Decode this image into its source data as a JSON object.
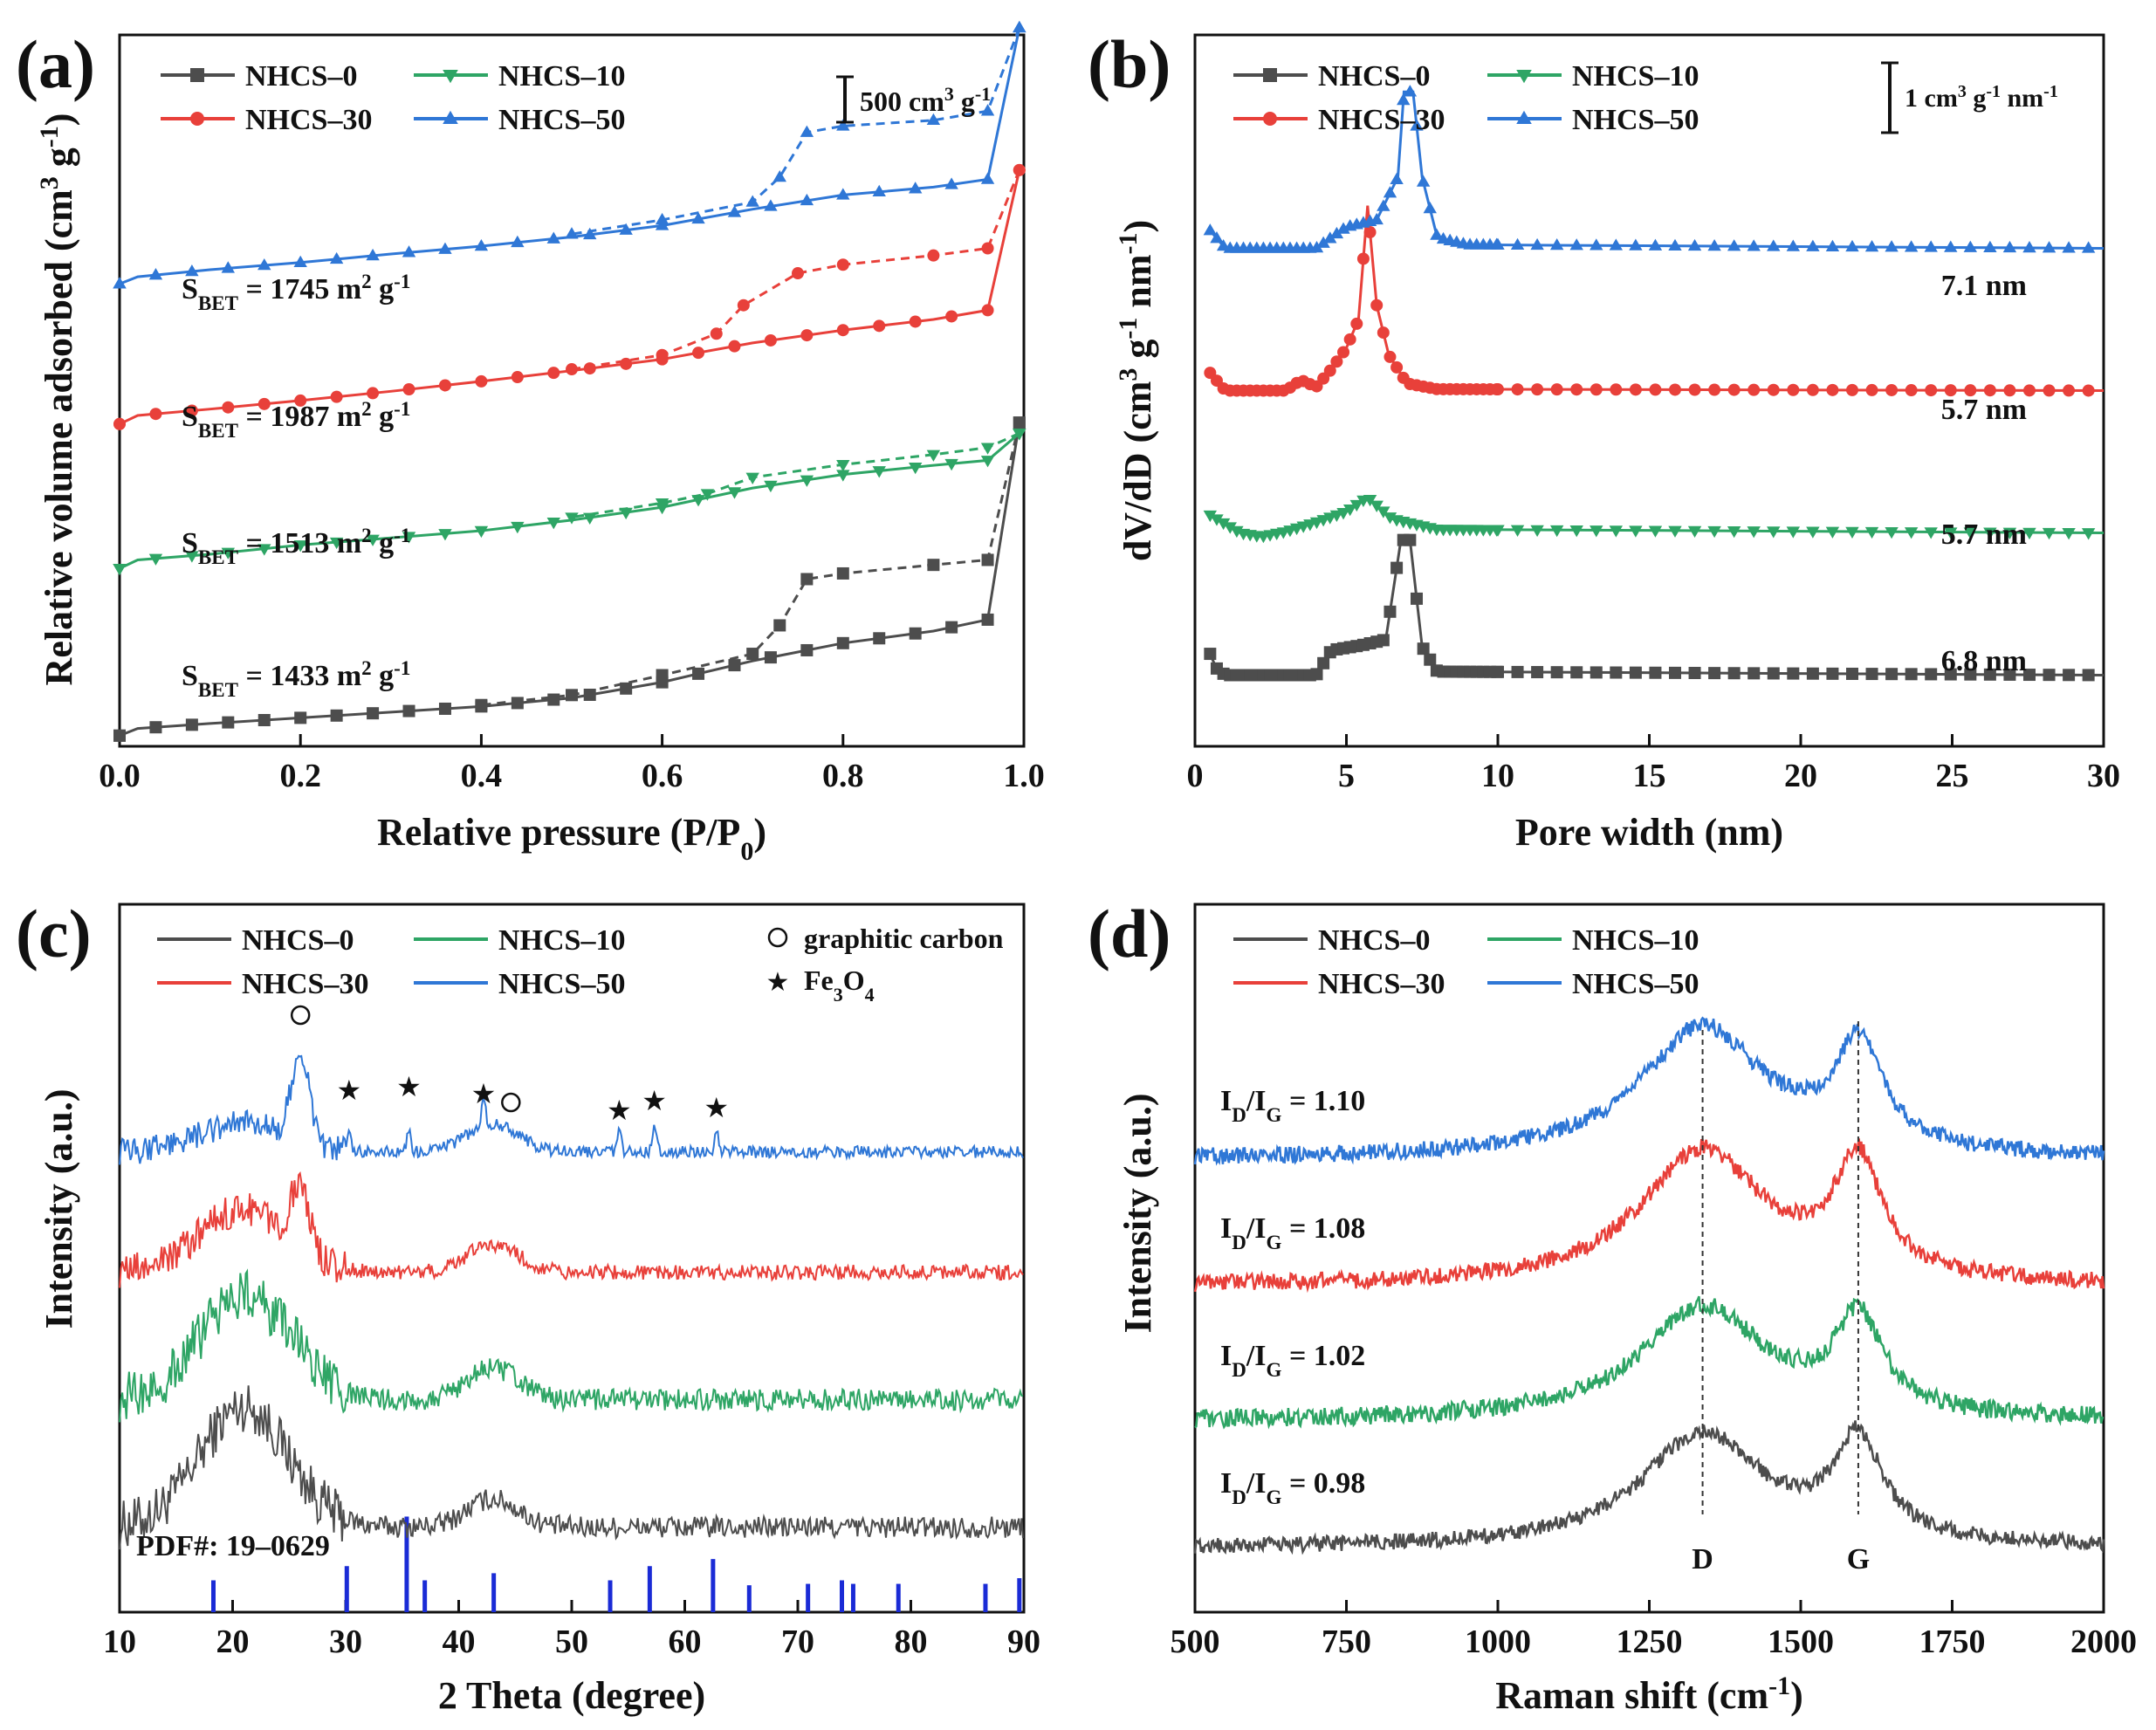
{
  "chart_data": [
    {
      "panel": "a",
      "type": "line",
      "panel_label": "(a)",
      "xlabel": "Relative pressure (P/P",
      "xlabel_sub": "0",
      "xlabel_close": ")",
      "ylabel": "Relative volume adsorbed (cm",
      "ylabel_sup": "3",
      "ylabel_mid": " g",
      "ylabel_sup2": "-1",
      "ylabel_close": ")",
      "xlim": [
        0,
        1.0
      ],
      "ylim": [
        0,
        100
      ],
      "xticks": [
        "0.0",
        "0.2",
        "0.4",
        "0.6",
        "0.8",
        "1.0"
      ],
      "xtick_values": [
        0,
        0.2,
        0.4,
        0.6,
        0.8,
        1.0
      ],
      "scale_bar": {
        "text": "500 cm",
        "sup": "3",
        "mid": " g",
        "sup2": "-1"
      },
      "legend": [
        "NHCS–0",
        "NHCS–10",
        "NHCS–30",
        "NHCS–50"
      ],
      "annotations": [
        {
          "pre": "S",
          "sub": "BET",
          "post": " = 1745 m",
          "sup": "2",
          "post2": " g",
          "sup2": "-1"
        },
        {
          "pre": "S",
          "sub": "BET",
          "post": " = 1987 m",
          "sup": "2",
          "post2": " g",
          "sup2": "-1"
        },
        {
          "pre": "S",
          "sub": "BET",
          "post": " = 1513 m",
          "sup": "2",
          "post2": " g",
          "sup2": "-1"
        },
        {
          "pre": "S",
          "sub": "BET",
          "post": " = 1433 m",
          "sup": "2",
          "post2": " g",
          "sup2": "-1"
        }
      ],
      "series": [
        {
          "name": "NHCS–0",
          "color": "#4d4d4d",
          "marker": "square",
          "adsorption": [
            [
              0.0,
              1.5
            ],
            [
              0.02,
              2.5
            ],
            [
              0.1,
              3.2
            ],
            [
              0.2,
              4.0
            ],
            [
              0.3,
              4.8
            ],
            [
              0.4,
              5.6
            ],
            [
              0.5,
              6.8
            ],
            [
              0.6,
              9.0
            ],
            [
              0.7,
              12.0
            ],
            [
              0.8,
              14.5
            ],
            [
              0.9,
              16.2
            ],
            [
              0.96,
              17.8
            ],
            [
              0.995,
              45.5
            ]
          ],
          "desorption": [
            [
              0.995,
              45.5
            ],
            [
              0.96,
              26.2
            ],
            [
              0.9,
              25.5
            ],
            [
              0.8,
              24.3
            ],
            [
              0.76,
              23.5
            ],
            [
              0.73,
              17.0
            ],
            [
              0.7,
              13.0
            ],
            [
              0.6,
              10.0
            ],
            [
              0.5,
              7.2
            ],
            [
              0.4,
              5.8
            ]
          ]
        },
        {
          "name": "NHCS–10",
          "color": "#2ea565",
          "marker": "triangle-down",
          "adsorption": [
            [
              0.0,
              25.0
            ],
            [
              0.02,
              26.2
            ],
            [
              0.1,
              27.0
            ],
            [
              0.2,
              28.3
            ],
            [
              0.3,
              29.3
            ],
            [
              0.4,
              30.3
            ],
            [
              0.5,
              31.8
            ],
            [
              0.6,
              33.6
            ],
            [
              0.7,
              36.3
            ],
            [
              0.8,
              38.2
            ],
            [
              0.9,
              39.5
            ],
            [
              0.96,
              40.2
            ],
            [
              0.995,
              44.0
            ]
          ],
          "desorption": [
            [
              0.995,
              44.0
            ],
            [
              0.96,
              42.0
            ],
            [
              0.9,
              41.0
            ],
            [
              0.8,
              39.6
            ],
            [
              0.7,
              37.8
            ],
            [
              0.65,
              35.5
            ],
            [
              0.6,
              34.2
            ],
            [
              0.5,
              32.2
            ]
          ]
        },
        {
          "name": "NHCS–30",
          "color": "#e8403a",
          "marker": "circle",
          "adsorption": [
            [
              0.0,
              45.3
            ],
            [
              0.02,
              46.5
            ],
            [
              0.1,
              47.4
            ],
            [
              0.2,
              48.6
            ],
            [
              0.3,
              49.9
            ],
            [
              0.4,
              51.3
            ],
            [
              0.5,
              52.8
            ],
            [
              0.6,
              54.4
            ],
            [
              0.7,
              56.7
            ],
            [
              0.8,
              58.5
            ],
            [
              0.9,
              60.0
            ],
            [
              0.96,
              61.3
            ],
            [
              0.995,
              81.0
            ]
          ],
          "desorption": [
            [
              0.995,
              81.0
            ],
            [
              0.96,
              70.0
            ],
            [
              0.9,
              69.0
            ],
            [
              0.8,
              67.7
            ],
            [
              0.75,
              66.5
            ],
            [
              0.69,
              62.0
            ],
            [
              0.66,
              58.0
            ],
            [
              0.6,
              55.0
            ],
            [
              0.5,
              53.0
            ]
          ]
        },
        {
          "name": "NHCS–50",
          "color": "#2f77d6",
          "marker": "triangle-up",
          "adsorption": [
            [
              0.0,
              65.0
            ],
            [
              0.02,
              66.0
            ],
            [
              0.1,
              67.0
            ],
            [
              0.2,
              68.0
            ],
            [
              0.3,
              69.2
            ],
            [
              0.4,
              70.3
            ],
            [
              0.5,
              71.6
            ],
            [
              0.6,
              73.2
            ],
            [
              0.7,
              75.5
            ],
            [
              0.8,
              77.5
            ],
            [
              0.9,
              78.6
            ],
            [
              0.96,
              79.7
            ],
            [
              0.995,
              101.0
            ]
          ],
          "desorption": [
            [
              0.995,
              101.0
            ],
            [
              0.96,
              89.3
            ],
            [
              0.9,
              88.0
            ],
            [
              0.8,
              87.2
            ],
            [
              0.76,
              86.3
            ],
            [
              0.73,
              80.0
            ],
            [
              0.7,
              76.5
            ],
            [
              0.6,
              74.0
            ],
            [
              0.5,
              72.0
            ]
          ]
        }
      ]
    },
    {
      "panel": "b",
      "type": "line",
      "panel_label": "(b)",
      "xlabel": "Pore width (nm)",
      "ylabel": "dV/dD (cm",
      "ylabel_sup": "3",
      "ylabel_mid": " g",
      "ylabel_sup2": "-1",
      "ylabel_post": " nm",
      "ylabel_sup3": "-1",
      "ylabel_close": ")",
      "xlim": [
        0,
        30
      ],
      "ylim": [
        0,
        100
      ],
      "xticks": [
        "0",
        "5",
        "10",
        "15",
        "20",
        "25",
        "30"
      ],
      "xtick_values": [
        0,
        5,
        10,
        15,
        20,
        25,
        30
      ],
      "scale_bar": {
        "text": "1 cm",
        "sup": "3",
        "mid": " g",
        "sup2": "-1",
        "post": " nm",
        "sup3": "-1"
      },
      "legend": [
        "NHCS–0",
        "NHCS–10",
        "NHCS–30",
        "NHCS–50"
      ],
      "peak_labels": [
        "7.1 nm",
        "5.7 nm",
        "5.7 nm",
        "6.8 nm"
      ],
      "series": [
        {
          "name": "NHCS–0",
          "color": "#4d4d4d",
          "marker": "square",
          "peak_nm": 6.8,
          "baseline": 10.0,
          "peak_height": 19.0,
          "points": [
            [
              0.5,
              13.0
            ],
            [
              0.7,
              11.0
            ],
            [
              1.0,
              10.0
            ],
            [
              4.0,
              10.0
            ],
            [
              4.5,
              13.5
            ],
            [
              5.5,
              14.2
            ],
            [
              6.3,
              15.0
            ],
            [
              6.8,
              29.0
            ],
            [
              7.1,
              29.0
            ],
            [
              7.5,
              14.0
            ],
            [
              8.0,
              10.5
            ],
            [
              30,
              10.0
            ]
          ]
        },
        {
          "name": "NHCS–10",
          "color": "#2ea565",
          "marker": "triangle-down",
          "peak_nm": 5.7,
          "baseline": 30.0,
          "peak_height": 5.0,
          "points": [
            [
              0.5,
              32.5
            ],
            [
              1.5,
              30.0
            ],
            [
              2.2,
              29.5
            ],
            [
              3.0,
              30.2
            ],
            [
              4.0,
              31.5
            ],
            [
              5.0,
              33.0
            ],
            [
              5.7,
              35.0
            ],
            [
              6.5,
              32.0
            ],
            [
              8.0,
              30.5
            ],
            [
              30,
              30.0
            ]
          ]
        },
        {
          "name": "NHCS–30",
          "color": "#e8403a",
          "marker": "circle",
          "peak_nm": 5.7,
          "baseline": 50.0,
          "peak_height": 26.0,
          "points": [
            [
              0.5,
              52.5
            ],
            [
              1.0,
              50.0
            ],
            [
              3.0,
              50.0
            ],
            [
              3.5,
              51.5
            ],
            [
              4.0,
              50.5
            ],
            [
              4.5,
              53.0
            ],
            [
              5.0,
              56.0
            ],
            [
              5.4,
              60.0
            ],
            [
              5.7,
              76.0
            ],
            [
              6.0,
              62.0
            ],
            [
              6.4,
              55.0
            ],
            [
              7.0,
              51.0
            ],
            [
              8.0,
              50.2
            ],
            [
              30,
              50.0
            ]
          ]
        },
        {
          "name": "NHCS–50",
          "color": "#2f77d6",
          "marker": "triangle-up",
          "peak_nm": 7.1,
          "baseline": 70.0,
          "peak_height": 22.0,
          "points": [
            [
              0.5,
              72.5
            ],
            [
              1.0,
              70.0
            ],
            [
              4.0,
              70.0
            ],
            [
              5.0,
              73.0
            ],
            [
              6.0,
              74.0
            ],
            [
              6.7,
              80.0
            ],
            [
              6.9,
              92.0
            ],
            [
              7.2,
              92.0
            ],
            [
              7.5,
              80.0
            ],
            [
              8.0,
              71.5
            ],
            [
              9.0,
              70.5
            ],
            [
              30,
              70.0
            ]
          ]
        }
      ]
    },
    {
      "panel": "c",
      "type": "line",
      "panel_label": "(c)",
      "xlabel": "2 Theta (degree)",
      "ylabel": "Intensity (a.u.)",
      "xlim": [
        10,
        90
      ],
      "ylim": [
        0,
        100
      ],
      "xticks": [
        "10",
        "20",
        "30",
        "40",
        "50",
        "60",
        "70",
        "80",
        "90"
      ],
      "xtick_values": [
        10,
        20,
        30,
        40,
        50,
        60,
        70,
        80,
        90
      ],
      "legend": [
        "NHCS–0",
        "NHCS–10",
        "NHCS–30",
        "NHCS–50"
      ],
      "legend_markers": [
        {
          "symbol": "○",
          "label": "graphitic carbon"
        },
        {
          "symbol": "★",
          "label": "Fe",
          "sub": "3",
          "label2": "O",
          "sub2": "4"
        }
      ],
      "pdf_label": "PDF#: 19–0629",
      "reference_peaks": [
        [
          18.3,
          4.5
        ],
        [
          30.1,
          6.5
        ],
        [
          35.4,
          13.5
        ],
        [
          37.0,
          4.5
        ],
        [
          43.1,
          5.5
        ],
        [
          53.4,
          4.5
        ],
        [
          56.9,
          6.5
        ],
        [
          62.5,
          7.5
        ],
        [
          65.7,
          3.8
        ],
        [
          70.9,
          4.0
        ],
        [
          73.9,
          4.5
        ],
        [
          74.9,
          4.0
        ],
        [
          78.9,
          4.0
        ],
        [
          86.6,
          4.0
        ],
        [
          89.6,
          4.8
        ]
      ],
      "graphite_marks": [
        26.0,
        44.0
      ],
      "fe3o4_marks": [
        30.3,
        35.6,
        42.2,
        54.2,
        57.3,
        62.8
      ],
      "series": [
        {
          "name": "NHCS–0",
          "color": "#4d4d4d",
          "baseline": 12.0,
          "hump": 17.0,
          "peak26": 0,
          "peak43": 4.0,
          "noise": 2.2
        },
        {
          "name": "NHCS–10",
          "color": "#2ea565",
          "baseline": 30.0,
          "hump": 15.0,
          "peak26": 2.0,
          "peak43": 4.5,
          "noise": 2.2
        },
        {
          "name": "NHCS–30",
          "color": "#e8403a",
          "baseline": 48.0,
          "hump": 9.0,
          "peak26": 9.0,
          "peak43": 4.0,
          "noise": 1.5
        },
        {
          "name": "NHCS–50",
          "color": "#2f77d6",
          "baseline": 65.0,
          "hump": 4.0,
          "peak26": 13.0,
          "peak43": 4.0,
          "noise": 1.2
        }
      ]
    },
    {
      "panel": "d",
      "type": "line",
      "panel_label": "(d)",
      "xlabel": "Raman shift (cm",
      "xlabel_sup": "-1",
      "xlabel_close": ")",
      "ylabel": "Intensity (a.u.)",
      "xlim": [
        500,
        2000
      ],
      "ylim": [
        0,
        100
      ],
      "xticks": [
        "500",
        "750",
        "1000",
        "1250",
        "1500",
        "1750",
        "2000"
      ],
      "xtick_values": [
        500,
        750,
        1000,
        1250,
        1500,
        1750,
        2000
      ],
      "legend": [
        "NHCS–0",
        "NHCS–10",
        "NHCS–30",
        "NHCS–50"
      ],
      "d_band": 1338,
      "g_band": 1595,
      "band_labels": [
        "D",
        "G"
      ],
      "ratio_labels": [
        {
          "pre": "I",
          "sub": "D",
          "mid": "/I",
          "sub2": "G",
          "post": " = 1.10"
        },
        {
          "pre": "I",
          "sub": "D",
          "mid": "/I",
          "sub2": "G",
          "post": " = 1.08"
        },
        {
          "pre": "I",
          "sub": "D",
          "mid": "/I",
          "sub2": "G",
          "post": " = 1.02"
        },
        {
          "pre": "I",
          "sub": "D",
          "mid": "/I",
          "sub2": "G",
          "post": " = 0.98"
        }
      ],
      "series": [
        {
          "name": "NHCS–0",
          "color": "#4d4d4d",
          "baseline": 9.0,
          "d_height": 16.0,
          "g_height": 16.5,
          "noise": 1.1
        },
        {
          "name": "NHCS–10",
          "color": "#2ea565",
          "baseline": 27.0,
          "d_height": 16.0,
          "g_height": 15.5,
          "noise": 1.3
        },
        {
          "name": "NHCS–30",
          "color": "#e8403a",
          "baseline": 46.0,
          "d_height": 19.0,
          "g_height": 19.0,
          "noise": 1.2
        },
        {
          "name": "NHCS–50",
          "color": "#2f77d6",
          "baseline": 64.0,
          "d_height": 18.5,
          "g_height": 17.0,
          "noise": 1.2
        }
      ]
    }
  ]
}
